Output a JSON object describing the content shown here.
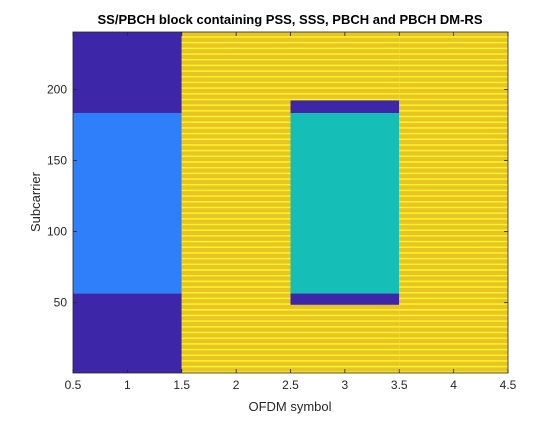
{
  "chart_data": {
    "type": "heatmap",
    "title": "SS/PBCH block containing PSS, SSS, PBCH and PBCH DM-RS",
    "xlabel": "OFDM symbol",
    "ylabel": "Subcarrier",
    "xlim": [
      0.5,
      4.5
    ],
    "ylim": [
      0.5,
      240.5
    ],
    "x_ticks": [
      "0.5",
      "1",
      "1.5",
      "2",
      "2.5",
      "3",
      "3.5",
      "4",
      "4.5"
    ],
    "y_ticks": [
      "50",
      "100",
      "150",
      "200"
    ],
    "x_tick_values": [
      0.5,
      1,
      1.5,
      2,
      2.5,
      3,
      3.5,
      4,
      4.5
    ],
    "y_tick_values": [
      50,
      100,
      150,
      200
    ],
    "grid": false,
    "legend": "none",
    "dmrs_period": 4,
    "colors": {
      "empty": "#3e26a8",
      "pss": "#2f7ffb",
      "sss": "#15bfb8",
      "pbch": "#e8c42a",
      "pbch_dmrs": "#f9fb14"
    },
    "regions": [
      {
        "element": "empty",
        "symbol_start": 1,
        "symbol_end": 1,
        "subcarrier_start": 1,
        "subcarrier_end": 56,
        "color": "#3e26a8"
      },
      {
        "element": "pss",
        "symbol_start": 1,
        "symbol_end": 1,
        "subcarrier_start": 57,
        "subcarrier_end": 183,
        "color": "#2f7ffb"
      },
      {
        "element": "empty",
        "symbol_start": 1,
        "symbol_end": 1,
        "subcarrier_start": 184,
        "subcarrier_end": 240,
        "color": "#3e26a8"
      },
      {
        "element": "pbch",
        "symbol_start": 2,
        "symbol_end": 2,
        "subcarrier_start": 1,
        "subcarrier_end": 240,
        "color": "#e8c42a"
      },
      {
        "element": "pbch",
        "symbol_start": 3,
        "symbol_end": 3,
        "subcarrier_start": 1,
        "subcarrier_end": 48,
        "color": "#e8c42a"
      },
      {
        "element": "empty",
        "symbol_start": 3,
        "symbol_end": 3,
        "subcarrier_start": 49,
        "subcarrier_end": 56,
        "color": "#3e26a8"
      },
      {
        "element": "sss",
        "symbol_start": 3,
        "symbol_end": 3,
        "subcarrier_start": 57,
        "subcarrier_end": 183,
        "color": "#15bfb8"
      },
      {
        "element": "empty",
        "symbol_start": 3,
        "symbol_end": 3,
        "subcarrier_start": 184,
        "subcarrier_end": 192,
        "color": "#3e26a8"
      },
      {
        "element": "pbch",
        "symbol_start": 3,
        "symbol_end": 3,
        "subcarrier_start": 193,
        "subcarrier_end": 240,
        "color": "#e8c42a"
      },
      {
        "element": "pbch",
        "symbol_start": 4,
        "symbol_end": 4,
        "subcarrier_start": 1,
        "subcarrier_end": 240,
        "color": "#e8c42a"
      }
    ]
  }
}
